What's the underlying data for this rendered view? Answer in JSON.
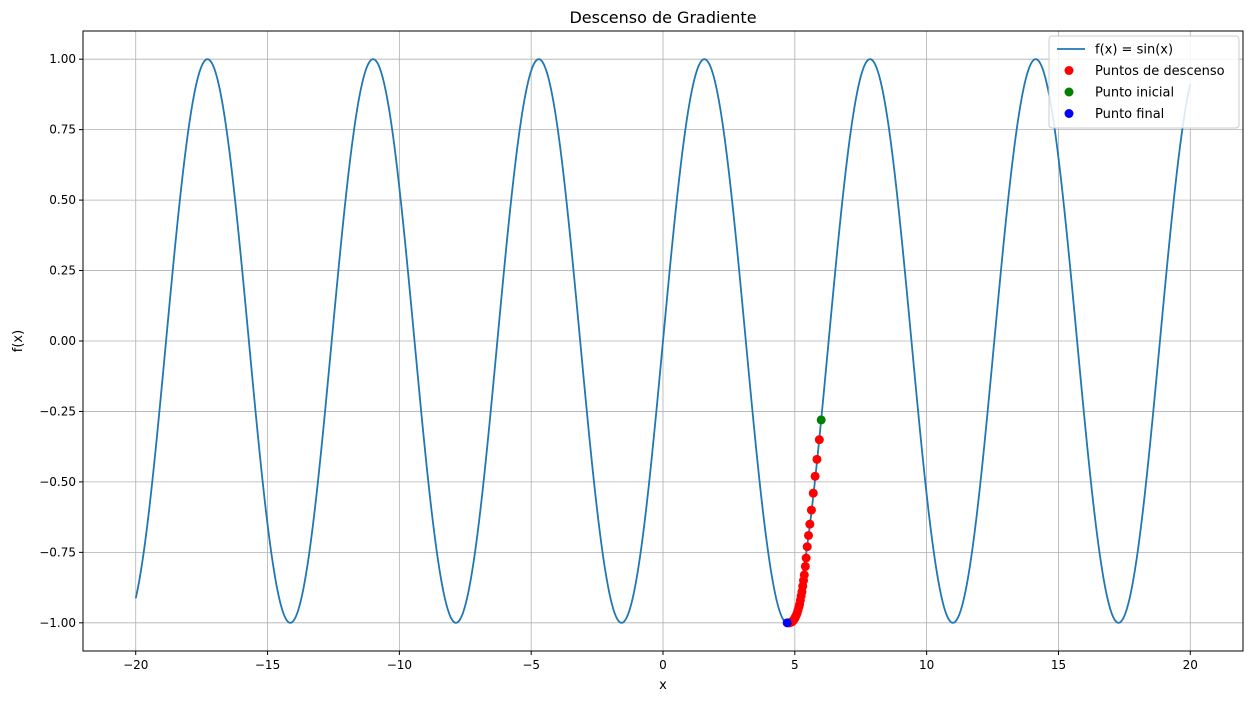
{
  "chart_data": {
    "type": "line",
    "title": "Descenso de Gradiente",
    "xlabel": "x",
    "ylabel": "f(x)",
    "xlim": [
      -22,
      22
    ],
    "ylim": [
      -1.1,
      1.1
    ],
    "x_ticks": [
      -20,
      -15,
      -10,
      -5,
      0,
      5,
      10,
      15,
      20
    ],
    "x_tick_labels": [
      "−20",
      "−15",
      "−10",
      "−5",
      "0",
      "5",
      "10",
      "15",
      "20"
    ],
    "y_ticks": [
      -1.0,
      -0.75,
      -0.5,
      -0.25,
      0.0,
      0.25,
      0.5,
      0.75,
      1.0
    ],
    "y_tick_labels": [
      "−1.00",
      "−0.75",
      "−0.50",
      "−0.25",
      "0.00",
      "0.25",
      "0.50",
      "0.75",
      "1.00"
    ],
    "grid": true,
    "legend_position": "top-right",
    "colors": {
      "line": "#1f77b4",
      "descent": "#ff0000",
      "initial": "#008000",
      "final": "#0000ff",
      "grid": "#b0b0b0"
    },
    "series": [
      {
        "name": "f(x) = sin(x)",
        "kind": "line",
        "function": "sin",
        "x_range": [
          -20,
          20
        ]
      },
      {
        "name": "Puntos de descenso",
        "kind": "scatter",
        "x": [
          5.93,
          5.84,
          5.77,
          5.7,
          5.63,
          5.57,
          5.52,
          5.47,
          5.43,
          5.4,
          5.36,
          5.33,
          5.3,
          5.27,
          5.24,
          5.21,
          5.18,
          5.15,
          5.12,
          5.09,
          5.06,
          5.03,
          5.0,
          4.97,
          4.94,
          4.91,
          4.88,
          4.85,
          4.82,
          4.79
        ],
        "y": [
          -0.35,
          -0.42,
          -0.48,
          -0.54,
          -0.6,
          -0.65,
          -0.69,
          -0.73,
          -0.77,
          -0.8,
          -0.83,
          -0.85,
          -0.87,
          -0.89,
          -0.905,
          -0.92,
          -0.935,
          -0.945,
          -0.955,
          -0.965,
          -0.972,
          -0.978,
          -0.984,
          -0.988,
          -0.992,
          -0.995,
          -0.997,
          -0.998,
          -0.999,
          -1.0
        ]
      },
      {
        "name": "Punto inicial",
        "kind": "scatter",
        "x": [
          6.0
        ],
        "y": [
          -0.28
        ]
      },
      {
        "name": "Punto final",
        "kind": "scatter",
        "x": [
          4.71
        ],
        "y": [
          -1.0
        ]
      }
    ]
  }
}
